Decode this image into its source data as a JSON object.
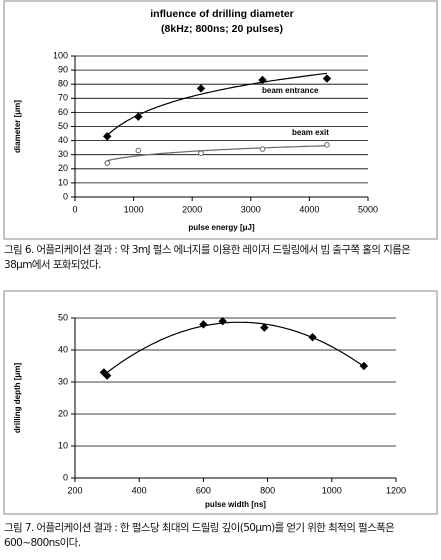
{
  "chart_data": [
    {
      "type": "scatter",
      "title": "influence of drilling diameter",
      "subtitle": "(8kHz; 800ns; 20 pulses)",
      "x_label": "pulse energy [μJ]",
      "y_label": "diameter [μm]",
      "xlim": [
        0,
        5000
      ],
      "xticks": [
        0,
        1000,
        2000,
        3000,
        4000,
        5000
      ],
      "ylim": [
        0,
        100
      ],
      "yticks": [
        0,
        10,
        20,
        30,
        40,
        50,
        60,
        70,
        80,
        90,
        100
      ],
      "grid": true,
      "series": [
        {
          "name": "beam entrance",
          "color": "#000000",
          "marker": "diamond",
          "filled": true,
          "trendline": "log",
          "x": [
            550,
            1080,
            2150,
            3200,
            4300
          ],
          "values": [
            43,
            57,
            77,
            83,
            84
          ]
        },
        {
          "name": "beam exit",
          "color": "#666666",
          "marker": "circle",
          "filled": false,
          "trendline": "log",
          "x": [
            550,
            1080,
            2150,
            3200,
            4300
          ],
          "values": [
            24,
            33,
            31,
            34,
            37
          ]
        }
      ]
    },
    {
      "type": "scatter",
      "x_label": "pulse width [ns]",
      "y_label": "drilling depth [μm]",
      "xlim": [
        200,
        1200
      ],
      "xticks": [
        200,
        400,
        600,
        800,
        1000,
        1200
      ],
      "ylim": [
        0,
        50
      ],
      "yticks": [
        0,
        10,
        20,
        30,
        40,
        50
      ],
      "grid": true,
      "series": [
        {
          "color": "#000000",
          "marker": "diamond",
          "filled": true,
          "trendline": "poly2",
          "x": [
            290,
            300,
            600,
            660,
            790,
            940,
            1100
          ],
          "values": [
            33,
            32,
            48,
            49,
            47,
            44,
            35
          ]
        }
      ]
    }
  ],
  "captions": [
    "그림 6. 어플리케이션 결과 : 약 3mJ 펄스 에너지를 이용한 레이저 드릴링에서 빔 출구쪽 홀의 지름은 38μm에서 포화되었다.",
    "그림 7. 어플리케이션 결과 : 한 펄스당 최대의 드릴링 깊이(50μm)를 얻기 위한 최적의 펄스폭은 600~800ns이다."
  ]
}
